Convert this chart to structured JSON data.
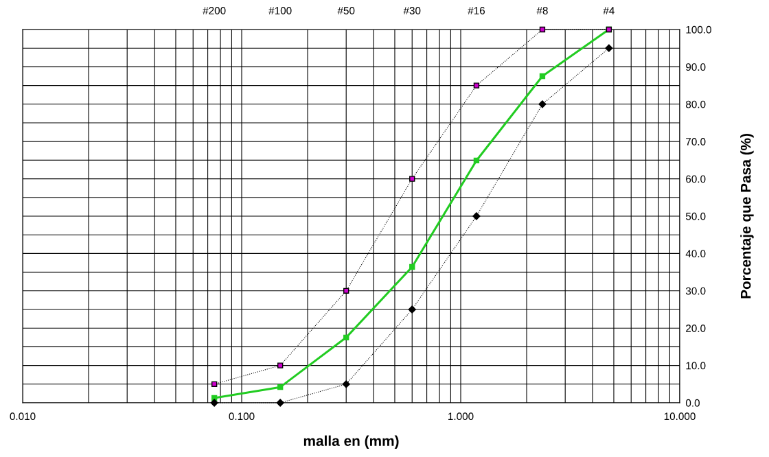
{
  "chart_data": {
    "type": "line",
    "xlabel": "malla en (mm)",
    "ylabel": "Porcentaje que Pasa (%)",
    "log": "x",
    "x": [
      0.075,
      0.15,
      0.3,
      0.6,
      1.18,
      2.36,
      4.75
    ],
    "series": [
      {
        "color": "#cc00cc",
        "marker": "square",
        "line_style": "dotted",
        "values": [
          5,
          10,
          30,
          60,
          85,
          100,
          100
        ]
      },
      {
        "color": "#000000",
        "marker": "diamond",
        "line_style": "dotted",
        "values": [
          0,
          0,
          5,
          25,
          50,
          80,
          95
        ]
      },
      {
        "color": "#22cc22",
        "marker": "square",
        "line_style": "solid",
        "values": [
          1.3,
          4.2,
          17.5,
          36.4,
          64.9,
          87.5,
          100
        ]
      }
    ],
    "xlim": [
      0.01,
      10
    ],
    "xticks": [
      {
        "value": 0.01,
        "label": "0.010"
      },
      {
        "value": 0.1,
        "label": "0.100"
      },
      {
        "value": 1,
        "label": "1.000"
      },
      {
        "value": 10,
        "label": "10.000"
      }
    ],
    "annotations": [
      "#200",
      "#100",
      "#50",
      "#30",
      "#16",
      "#8",
      "#4"
    ],
    "ylim": [
      0,
      100
    ],
    "yticks": [
      {
        "value": 0,
        "label": "0.0"
      },
      {
        "value": 5,
        "label": null
      },
      {
        "value": 10,
        "label": "10.0"
      },
      {
        "value": 15,
        "label": null
      },
      {
        "value": 20,
        "label": "20.0"
      },
      {
        "value": 25,
        "label": null
      },
      {
        "value": 30,
        "label": "30.0"
      },
      {
        "value": 35,
        "label": null
      },
      {
        "value": 40,
        "label": "40.0"
      },
      {
        "value": 45,
        "label": null
      },
      {
        "value": 50,
        "label": "50.0"
      },
      {
        "value": 55,
        "label": null
      },
      {
        "value": 60,
        "label": "60.0"
      },
      {
        "value": 65,
        "label": null
      },
      {
        "value": 70,
        "label": "70.0"
      },
      {
        "value": 75,
        "label": null
      },
      {
        "value": 80,
        "label": "80.0"
      },
      {
        "value": 85,
        "label": null
      },
      {
        "value": 90,
        "label": "90.0"
      },
      {
        "value": 95,
        "label": null
      },
      {
        "value": 100,
        "label": "100.0"
      }
    ],
    "grid": true
  }
}
